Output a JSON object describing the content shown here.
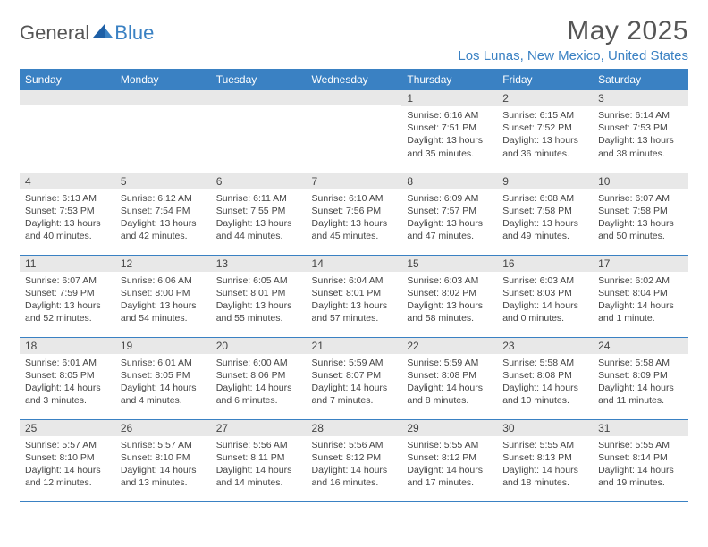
{
  "logo": {
    "text_general": "General",
    "text_blue": "Blue"
  },
  "title": "May 2025",
  "location": "Los Lunas, New Mexico, United States",
  "colors": {
    "header_bg": "#3a81c3",
    "header_text": "#ffffff",
    "daynum_bg": "#e8e8e8",
    "row_border": "#3a81c3",
    "body_text": "#444444",
    "location_text": "#3a81c3",
    "title_text": "#555555"
  },
  "day_headers": [
    "Sunday",
    "Monday",
    "Tuesday",
    "Wednesday",
    "Thursday",
    "Friday",
    "Saturday"
  ],
  "weeks": [
    [
      {
        "n": "",
        "lines": []
      },
      {
        "n": "",
        "lines": []
      },
      {
        "n": "",
        "lines": []
      },
      {
        "n": "",
        "lines": []
      },
      {
        "n": "1",
        "lines": [
          "Sunrise: 6:16 AM",
          "Sunset: 7:51 PM",
          "Daylight: 13 hours",
          "and 35 minutes."
        ]
      },
      {
        "n": "2",
        "lines": [
          "Sunrise: 6:15 AM",
          "Sunset: 7:52 PM",
          "Daylight: 13 hours",
          "and 36 minutes."
        ]
      },
      {
        "n": "3",
        "lines": [
          "Sunrise: 6:14 AM",
          "Sunset: 7:53 PM",
          "Daylight: 13 hours",
          "and 38 minutes."
        ]
      }
    ],
    [
      {
        "n": "4",
        "lines": [
          "Sunrise: 6:13 AM",
          "Sunset: 7:53 PM",
          "Daylight: 13 hours",
          "and 40 minutes."
        ]
      },
      {
        "n": "5",
        "lines": [
          "Sunrise: 6:12 AM",
          "Sunset: 7:54 PM",
          "Daylight: 13 hours",
          "and 42 minutes."
        ]
      },
      {
        "n": "6",
        "lines": [
          "Sunrise: 6:11 AM",
          "Sunset: 7:55 PM",
          "Daylight: 13 hours",
          "and 44 minutes."
        ]
      },
      {
        "n": "7",
        "lines": [
          "Sunrise: 6:10 AM",
          "Sunset: 7:56 PM",
          "Daylight: 13 hours",
          "and 45 minutes."
        ]
      },
      {
        "n": "8",
        "lines": [
          "Sunrise: 6:09 AM",
          "Sunset: 7:57 PM",
          "Daylight: 13 hours",
          "and 47 minutes."
        ]
      },
      {
        "n": "9",
        "lines": [
          "Sunrise: 6:08 AM",
          "Sunset: 7:58 PM",
          "Daylight: 13 hours",
          "and 49 minutes."
        ]
      },
      {
        "n": "10",
        "lines": [
          "Sunrise: 6:07 AM",
          "Sunset: 7:58 PM",
          "Daylight: 13 hours",
          "and 50 minutes."
        ]
      }
    ],
    [
      {
        "n": "11",
        "lines": [
          "Sunrise: 6:07 AM",
          "Sunset: 7:59 PM",
          "Daylight: 13 hours",
          "and 52 minutes."
        ]
      },
      {
        "n": "12",
        "lines": [
          "Sunrise: 6:06 AM",
          "Sunset: 8:00 PM",
          "Daylight: 13 hours",
          "and 54 minutes."
        ]
      },
      {
        "n": "13",
        "lines": [
          "Sunrise: 6:05 AM",
          "Sunset: 8:01 PM",
          "Daylight: 13 hours",
          "and 55 minutes."
        ]
      },
      {
        "n": "14",
        "lines": [
          "Sunrise: 6:04 AM",
          "Sunset: 8:01 PM",
          "Daylight: 13 hours",
          "and 57 minutes."
        ]
      },
      {
        "n": "15",
        "lines": [
          "Sunrise: 6:03 AM",
          "Sunset: 8:02 PM",
          "Daylight: 13 hours",
          "and 58 minutes."
        ]
      },
      {
        "n": "16",
        "lines": [
          "Sunrise: 6:03 AM",
          "Sunset: 8:03 PM",
          "Daylight: 14 hours",
          "and 0 minutes."
        ]
      },
      {
        "n": "17",
        "lines": [
          "Sunrise: 6:02 AM",
          "Sunset: 8:04 PM",
          "Daylight: 14 hours",
          "and 1 minute."
        ]
      }
    ],
    [
      {
        "n": "18",
        "lines": [
          "Sunrise: 6:01 AM",
          "Sunset: 8:05 PM",
          "Daylight: 14 hours",
          "and 3 minutes."
        ]
      },
      {
        "n": "19",
        "lines": [
          "Sunrise: 6:01 AM",
          "Sunset: 8:05 PM",
          "Daylight: 14 hours",
          "and 4 minutes."
        ]
      },
      {
        "n": "20",
        "lines": [
          "Sunrise: 6:00 AM",
          "Sunset: 8:06 PM",
          "Daylight: 14 hours",
          "and 6 minutes."
        ]
      },
      {
        "n": "21",
        "lines": [
          "Sunrise: 5:59 AM",
          "Sunset: 8:07 PM",
          "Daylight: 14 hours",
          "and 7 minutes."
        ]
      },
      {
        "n": "22",
        "lines": [
          "Sunrise: 5:59 AM",
          "Sunset: 8:08 PM",
          "Daylight: 14 hours",
          "and 8 minutes."
        ]
      },
      {
        "n": "23",
        "lines": [
          "Sunrise: 5:58 AM",
          "Sunset: 8:08 PM",
          "Daylight: 14 hours",
          "and 10 minutes."
        ]
      },
      {
        "n": "24",
        "lines": [
          "Sunrise: 5:58 AM",
          "Sunset: 8:09 PM",
          "Daylight: 14 hours",
          "and 11 minutes."
        ]
      }
    ],
    [
      {
        "n": "25",
        "lines": [
          "Sunrise: 5:57 AM",
          "Sunset: 8:10 PM",
          "Daylight: 14 hours",
          "and 12 minutes."
        ]
      },
      {
        "n": "26",
        "lines": [
          "Sunrise: 5:57 AM",
          "Sunset: 8:10 PM",
          "Daylight: 14 hours",
          "and 13 minutes."
        ]
      },
      {
        "n": "27",
        "lines": [
          "Sunrise: 5:56 AM",
          "Sunset: 8:11 PM",
          "Daylight: 14 hours",
          "and 14 minutes."
        ]
      },
      {
        "n": "28",
        "lines": [
          "Sunrise: 5:56 AM",
          "Sunset: 8:12 PM",
          "Daylight: 14 hours",
          "and 16 minutes."
        ]
      },
      {
        "n": "29",
        "lines": [
          "Sunrise: 5:55 AM",
          "Sunset: 8:12 PM",
          "Daylight: 14 hours",
          "and 17 minutes."
        ]
      },
      {
        "n": "30",
        "lines": [
          "Sunrise: 5:55 AM",
          "Sunset: 8:13 PM",
          "Daylight: 14 hours",
          "and 18 minutes."
        ]
      },
      {
        "n": "31",
        "lines": [
          "Sunrise: 5:55 AM",
          "Sunset: 8:14 PM",
          "Daylight: 14 hours",
          "and 19 minutes."
        ]
      }
    ]
  ]
}
